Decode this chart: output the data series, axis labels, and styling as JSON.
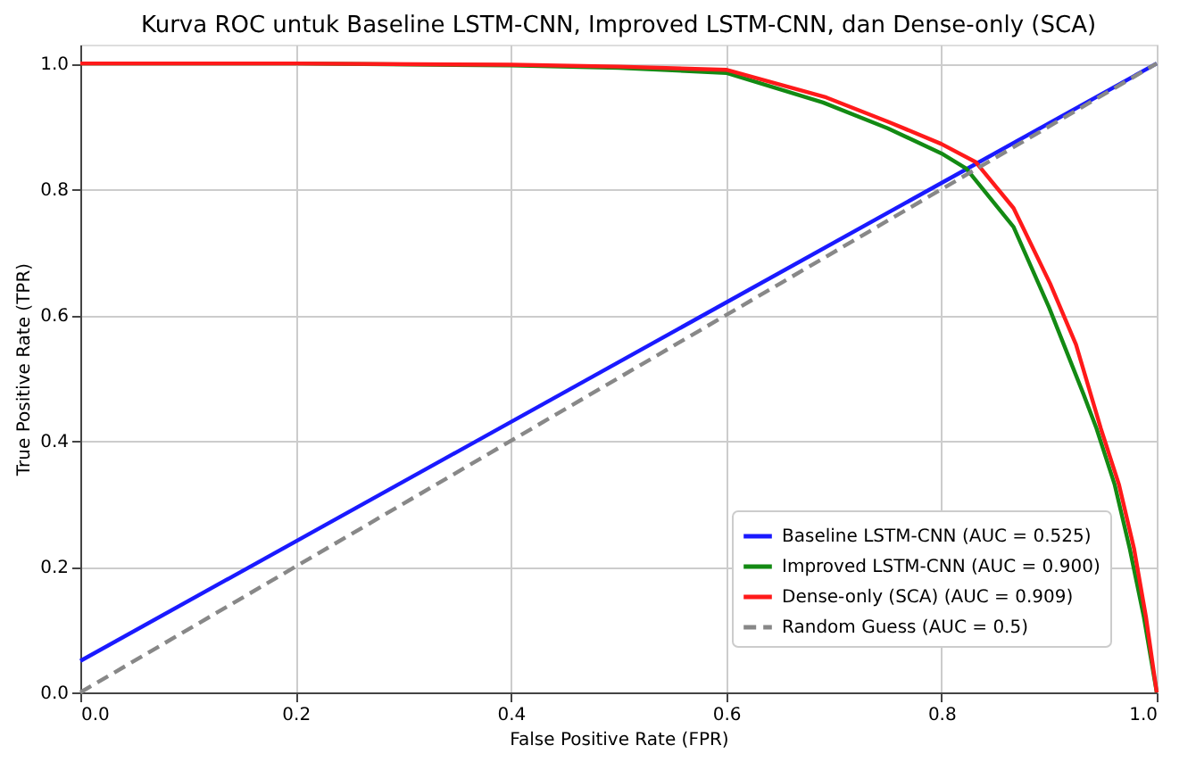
{
  "chart_data": {
    "type": "line",
    "title": "Kurva ROC untuk Baseline LSTM-CNN, Improved LSTM-CNN, dan Dense-only (SCA)",
    "xlabel": "False Positive Rate (FPR)",
    "ylabel": "True Positive Rate (TPR)",
    "xlim": [
      0,
      1
    ],
    "ylim": [
      0,
      1.03
    ],
    "xticks": [
      {
        "value": 0,
        "label": "0.0"
      },
      0.2,
      0.4,
      0.6,
      0.8,
      {
        "value": 1,
        "label": "1.0"
      }
    ],
    "yticks": [
      {
        "value": 0,
        "label": "0.0"
      },
      0.2,
      0.4,
      0.6,
      0.8,
      {
        "value": 1,
        "label": "1.0"
      }
    ],
    "grid": true,
    "legend": "bottom right",
    "marker": "none",
    "series": [
      {
        "name": "Baseline LSTM-CNN (AUC = 0.525)",
        "color": "#1a1aff",
        "line_style": "solid",
        "x": [
          0,
          1
        ],
        "values": [
          0.05,
          1
        ]
      },
      {
        "name": "Improved LSTM-CNN (AUC = 0.900)",
        "color": "#138a13",
        "line_style": "solid",
        "x": [
          0,
          0.2,
          0.4,
          0.5,
          0.6,
          0.69,
          0.75,
          0.8,
          0.823,
          0.867,
          0.9,
          0.932,
          0.944,
          0.961,
          0.975,
          0.988,
          1
        ],
        "values": [
          1,
          1,
          0.997,
          0.993,
          0.985,
          0.938,
          0.897,
          0.857,
          0.833,
          0.74,
          0.612,
          0.474,
          0.42,
          0.33,
          0.228,
          0.12,
          0
        ]
      },
      {
        "name": "Dense-only (SCA) (AUC = 0.909)",
        "color": "#ff1a1a",
        "line_style": "solid",
        "x": [
          0,
          0.2,
          0.4,
          0.5,
          0.6,
          0.693,
          0.751,
          0.8,
          0.832,
          0.867,
          0.901,
          0.925,
          0.948,
          0.965,
          0.979,
          0.99,
          1
        ],
        "values": [
          1,
          1,
          0.998,
          0.995,
          0.99,
          0.946,
          0.907,
          0.872,
          0.843,
          0.77,
          0.65,
          0.553,
          0.42,
          0.33,
          0.228,
          0.12,
          0
        ]
      },
      {
        "name": "Random Guess (AUC = 0.5)",
        "color": "#888888",
        "line_style": "dashed",
        "x": [
          0,
          1
        ],
        "values": [
          0,
          1
        ]
      }
    ]
  }
}
